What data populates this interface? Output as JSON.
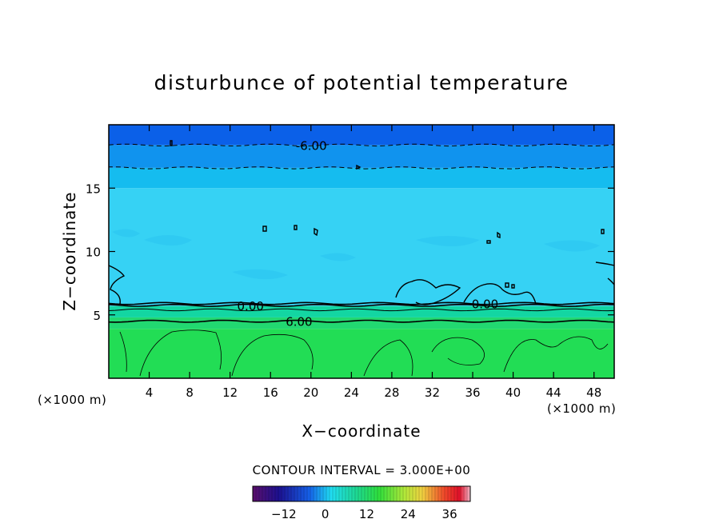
{
  "chart_data": {
    "type": "heatmap",
    "title": "disturbunce of potential temperature",
    "xlabel": "X−coordinate",
    "ylabel": "Z−coordinate",
    "x_unit_left": "(×1000 m)",
    "x_unit_right": "(×1000 m)",
    "xlim": [
      0,
      50
    ],
    "ylim": [
      0,
      20
    ],
    "xticks": [
      4,
      8,
      12,
      16,
      20,
      24,
      28,
      32,
      36,
      40,
      44,
      48
    ],
    "yticks": [
      5,
      10,
      15
    ],
    "color_bands": [
      {
        "z0": 0,
        "z1": 3.9,
        "value": 9,
        "color": "#22dd55"
      },
      {
        "z0": 3.9,
        "z1": 4.8,
        "value": 7,
        "color": "#22d871"
      },
      {
        "z0": 4.8,
        "z1": 5.7,
        "value": 3,
        "color": "#13d6a2"
      },
      {
        "z0": 5.7,
        "z1": 15.0,
        "value": -2,
        "color": "#36d2f4"
      },
      {
        "z0": 15.0,
        "z1": 16.6,
        "value": -4,
        "color": "#15bcef"
      },
      {
        "z0": 16.6,
        "z1": 18.4,
        "value": -6,
        "color": "#1093ee"
      },
      {
        "z0": 18.4,
        "z1": 20,
        "value": -8,
        "color": "#0b60e8"
      }
    ],
    "contour_lines": [
      {
        "level": "-6.00",
        "z": 18.4,
        "style": "dashed",
        "label_x": 18.5
      },
      {
        "level": "",
        "z": 16.6,
        "style": "dashed"
      },
      {
        "level": "0.00",
        "z": 5.75,
        "style": "solid",
        "label_x": 12.7
      },
      {
        "level": "0.00",
        "z": 5.9,
        "style": "solid",
        "label_x": 35.9
      },
      {
        "level": "6.00",
        "z": 4.5,
        "style": "solid",
        "label_x": 17.5
      },
      {
        "level": "",
        "z": 5.4,
        "style": "solid-thin"
      }
    ],
    "contour_interval_label": "CONTOUR INTERVAL =",
    "contour_interval_value": "3.000E+00",
    "colorbar": {
      "ticks": [
        "−12",
        "0",
        "12",
        "24",
        "36"
      ],
      "tick_values": [
        -12,
        0,
        12,
        24,
        36
      ],
      "range": [
        -21,
        42
      ]
    }
  }
}
